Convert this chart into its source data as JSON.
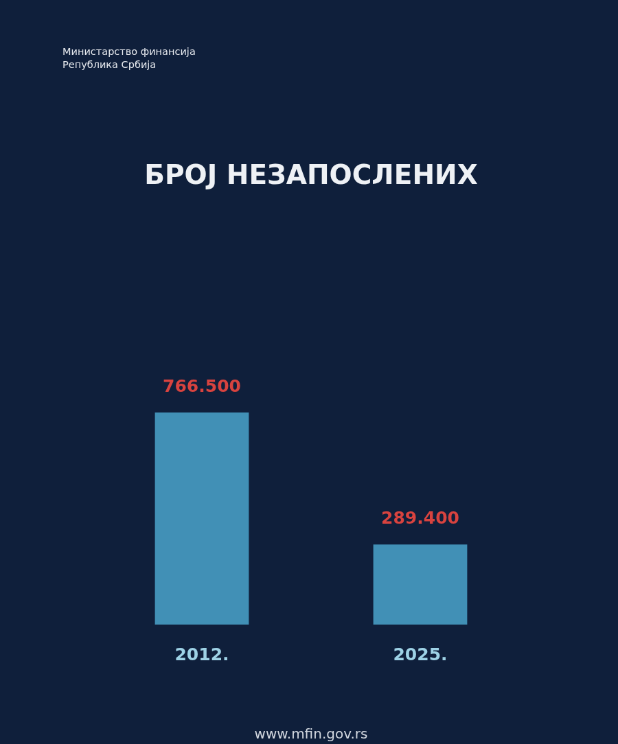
{
  "chart_data": {
    "type": "bar",
    "title": "БРОЈ НЕЗАПОСЛЕНИХ",
    "categories": [
      "2012.",
      "2025."
    ],
    "values": [
      766500,
      289400
    ],
    "value_labels": [
      "766.500",
      "289.400"
    ],
    "color": "#4190b6",
    "annotations": [
      "Министарство финансија",
      "Република Србија",
      "www.mfin.gov.rs"
    ]
  }
}
